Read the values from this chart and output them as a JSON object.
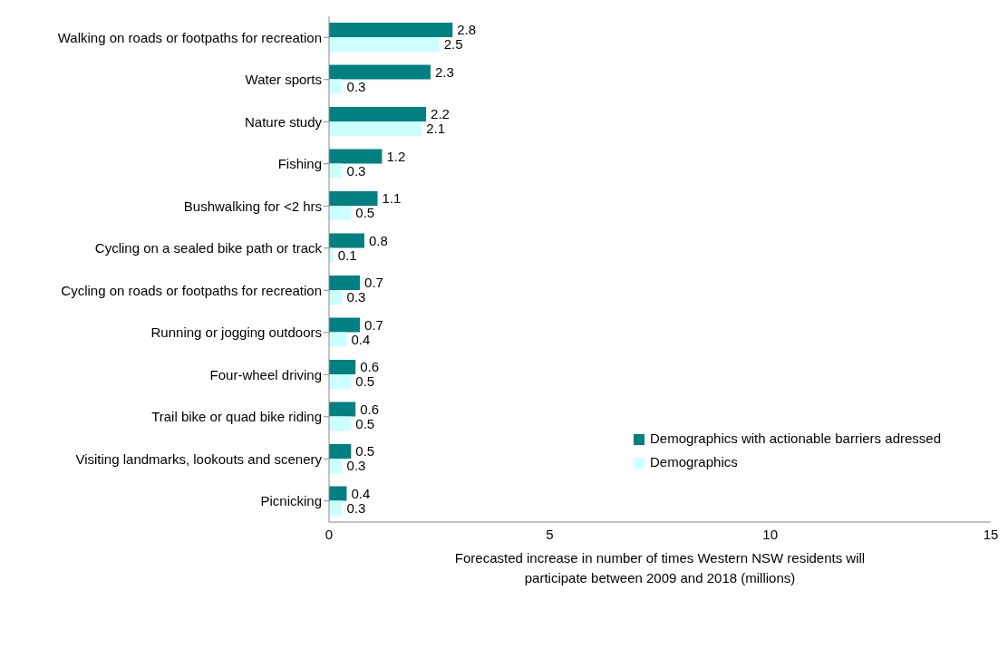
{
  "chart_data": {
    "type": "bar",
    "orientation": "horizontal",
    "xlabel": "Forecasted increase in number of times Western NSW residents will participate between 2009 and 2018 (millions)",
    "categories": [
      "Walking on roads or footpaths for recreation",
      "Water sports",
      "Nature study",
      "Fishing",
      "Bushwalking for <2 hrs",
      "Cycling on a sealed bike path or track",
      "Cycling on roads or footpaths for recreation",
      "Running or jogging outdoors",
      "Four-wheel driving",
      "Trail bike or quad bike riding",
      "Visiting landmarks, lookouts and scenery",
      "Picnicking"
    ],
    "series": [
      {
        "name": "Demographics with actionable barriers adressed",
        "color": "#008080",
        "values": [
          2.8,
          2.3,
          2.2,
          1.2,
          1.1,
          0.8,
          0.7,
          0.7,
          0.6,
          0.6,
          0.5,
          0.4
        ]
      },
      {
        "name": "Demographics",
        "color": "#ccffff",
        "values": [
          2.5,
          0.3,
          2.1,
          0.3,
          0.5,
          0.1,
          0.3,
          0.4,
          0.5,
          0.5,
          0.3,
          0.3
        ]
      }
    ],
    "xlim": [
      0,
      15
    ],
    "xticks": [
      0,
      5,
      10,
      15
    ],
    "data_labels": true,
    "legend": "bottom right",
    "grid": false
  }
}
